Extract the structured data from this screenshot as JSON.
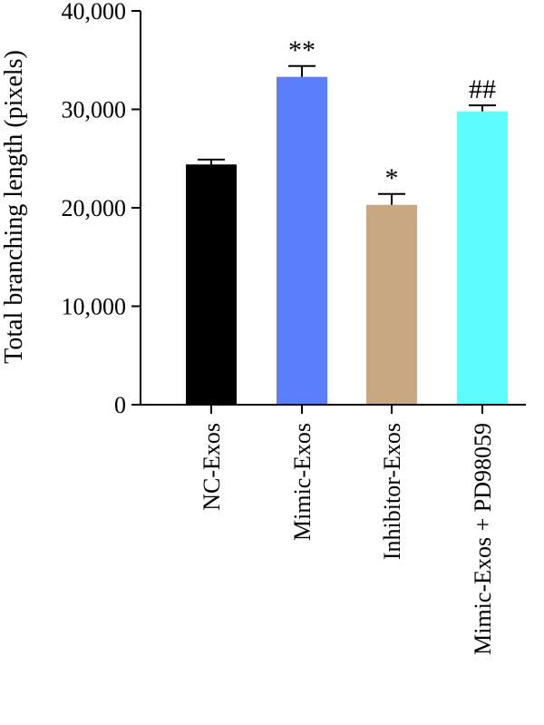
{
  "chart_data": {
    "type": "bar",
    "title": "",
    "xlabel": "",
    "ylabel": "Total branching length (pixels)",
    "ylim": [
      0,
      40000
    ],
    "yticks": [
      0,
      10000,
      20000,
      30000,
      40000
    ],
    "ytick_labels": [
      "0",
      "10,000",
      "20,000",
      "30,000",
      "40,000"
    ],
    "categories": [
      "NC-Exos",
      "Mimic-Exos",
      "Inhibitor-Exos",
      "Mimic-Exos + PD98059"
    ],
    "values": [
      24400,
      33300,
      20300,
      29800
    ],
    "errors": [
      500,
      1100,
      1100,
      600
    ],
    "annotations": [
      "",
      "**",
      "*",
      "##"
    ],
    "colors": [
      "#000000",
      "#5b7ffc",
      "#c8a882",
      "#5cfcff"
    ],
    "grid": false,
    "legend": "none"
  }
}
